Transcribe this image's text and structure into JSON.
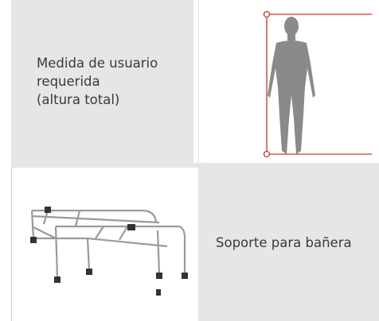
{
  "rows": [
    {
      "label_lines": [
        "Medida de usuario",
        "requerida",
        "(altura total)"
      ]
    },
    {
      "label_lines": [
        "Soporte para bañera"
      ]
    }
  ]
}
